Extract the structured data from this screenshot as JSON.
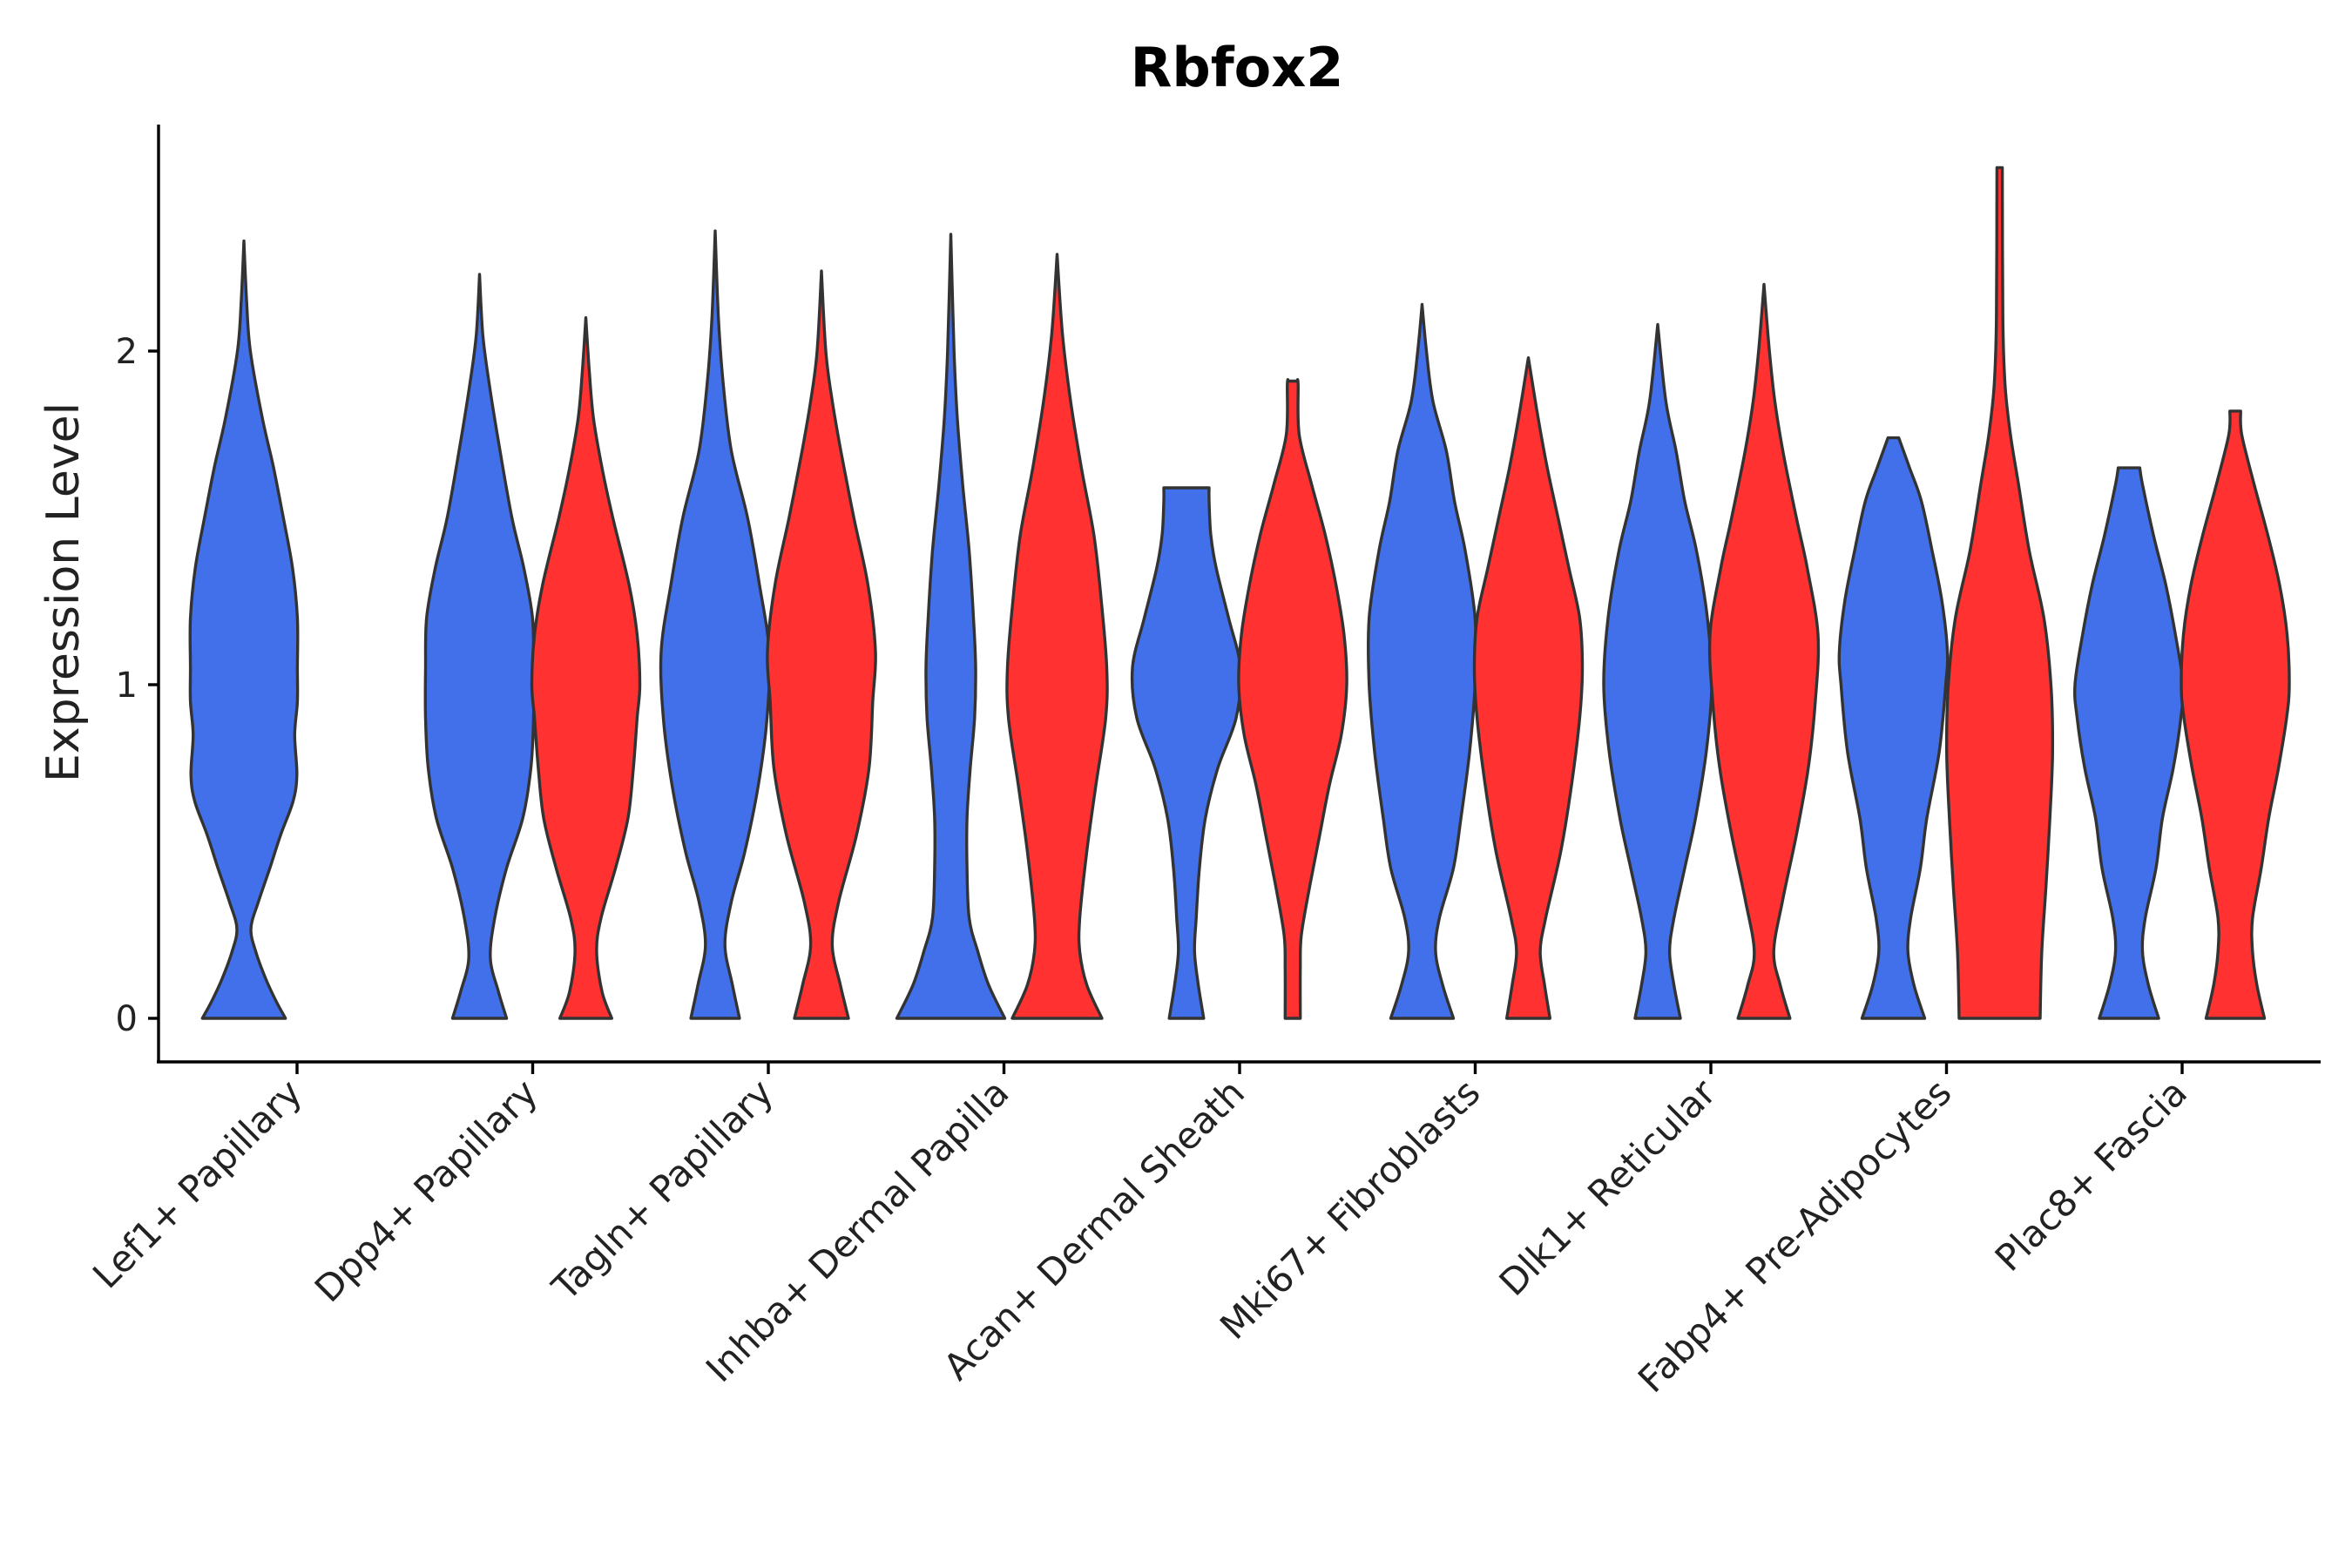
{
  "chart_data": {
    "type": "violin",
    "title": "Rbfox2",
    "xlabel": "",
    "ylabel": "Expression Level",
    "ylim": [
      -0.13,
      2.7
    ],
    "yticks": [
      0,
      1,
      2
    ],
    "categories": [
      "Lef1+ Papillary",
      "Dpp4+ Papillary",
      "Tagln+ Papillary",
      "Inhba+ Dermal Papilla",
      "Acan+ Dermal Sheath",
      "Mki67+ Fibroblasts",
      "Dlk1+ Reticular",
      "Fabp4+ Pre-Adipocytes",
      "Plac8+ Fascia"
    ],
    "groups": [
      {
        "name": "group-1",
        "color": "#4270EA"
      },
      {
        "name": "group-2",
        "color": "#FF3131"
      }
    ],
    "series": [
      {
        "category": "Lef1+ Papillary",
        "group": "group-1",
        "max": 2.33,
        "profile": [
          [
            0,
            0.77
          ],
          [
            0.05,
            0.6
          ],
          [
            0.12,
            0.4
          ],
          [
            0.2,
            0.22
          ],
          [
            0.27,
            0.13
          ],
          [
            0.35,
            0.27
          ],
          [
            0.45,
            0.48
          ],
          [
            0.55,
            0.68
          ],
          [
            0.65,
            0.91
          ],
          [
            0.73,
            0.98
          ],
          [
            0.85,
            0.94
          ],
          [
            0.95,
            0.99
          ],
          [
            1.05,
            0.99
          ],
          [
            1.2,
            0.99
          ],
          [
            1.35,
            0.9
          ],
          [
            1.5,
            0.73
          ],
          [
            1.65,
            0.55
          ],
          [
            1.8,
            0.34
          ],
          [
            2.0,
            0.12
          ],
          [
            2.15,
            0.05
          ],
          [
            2.33,
            0
          ]
        ]
      },
      {
        "category": "Dpp4+ Papillary",
        "group": "group-1",
        "max": 2.23,
        "profile": [
          [
            0,
            0.5
          ],
          [
            0.08,
            0.35
          ],
          [
            0.18,
            0.2
          ],
          [
            0.3,
            0.28
          ],
          [
            0.45,
            0.5
          ],
          [
            0.6,
            0.8
          ],
          [
            0.75,
            0.95
          ],
          [
            0.9,
            1.0
          ],
          [
            1.05,
            1.0
          ],
          [
            1.2,
            0.98
          ],
          [
            1.35,
            0.82
          ],
          [
            1.5,
            0.6
          ],
          [
            1.7,
            0.38
          ],
          [
            1.9,
            0.18
          ],
          [
            2.05,
            0.06
          ],
          [
            2.23,
            0
          ]
        ]
      },
      {
        "category": "Dpp4+ Papillary",
        "group": "group-2",
        "max": 2.1,
        "profile": [
          [
            0,
            0.48
          ],
          [
            0.08,
            0.3
          ],
          [
            0.2,
            0.2
          ],
          [
            0.3,
            0.28
          ],
          [
            0.45,
            0.55
          ],
          [
            0.6,
            0.78
          ],
          [
            0.75,
            0.88
          ],
          [
            0.9,
            0.95
          ],
          [
            1.0,
            1.0
          ],
          [
            1.15,
            0.95
          ],
          [
            1.3,
            0.8
          ],
          [
            1.5,
            0.5
          ],
          [
            1.65,
            0.3
          ],
          [
            1.8,
            0.14
          ],
          [
            1.95,
            0.06
          ],
          [
            2.1,
            0
          ]
        ]
      },
      {
        "category": "Tagln+ Papillary",
        "group": "group-1",
        "max": 2.36,
        "profile": [
          [
            0,
            0.45
          ],
          [
            0.1,
            0.32
          ],
          [
            0.22,
            0.18
          ],
          [
            0.35,
            0.3
          ],
          [
            0.5,
            0.55
          ],
          [
            0.7,
            0.8
          ],
          [
            0.9,
            0.96
          ],
          [
            1.1,
            1.0
          ],
          [
            1.3,
            0.82
          ],
          [
            1.5,
            0.6
          ],
          [
            1.7,
            0.3
          ],
          [
            1.9,
            0.15
          ],
          [
            2.1,
            0.06
          ],
          [
            2.36,
            0
          ]
        ]
      },
      {
        "category": "Tagln+ Papillary",
        "group": "group-2",
        "max": 2.24,
        "profile": [
          [
            0,
            0.5
          ],
          [
            0.1,
            0.35
          ],
          [
            0.22,
            0.2
          ],
          [
            0.35,
            0.32
          ],
          [
            0.55,
            0.65
          ],
          [
            0.75,
            0.88
          ],
          [
            0.95,
            0.95
          ],
          [
            1.1,
            1.0
          ],
          [
            1.3,
            0.86
          ],
          [
            1.5,
            0.6
          ],
          [
            1.7,
            0.36
          ],
          [
            1.85,
            0.2
          ],
          [
            2.0,
            0.08
          ],
          [
            2.24,
            0
          ]
        ]
      },
      {
        "category": "Inhba+ Dermal Papilla",
        "group": "group-1",
        "max": 2.35,
        "profile": [
          [
            0,
            1.0
          ],
          [
            0.1,
            0.7
          ],
          [
            0.2,
            0.5
          ],
          [
            0.3,
            0.34
          ],
          [
            0.45,
            0.3
          ],
          [
            0.6,
            0.3
          ],
          [
            0.75,
            0.36
          ],
          [
            0.9,
            0.44
          ],
          [
            1.05,
            0.46
          ],
          [
            1.2,
            0.42
          ],
          [
            1.4,
            0.34
          ],
          [
            1.6,
            0.22
          ],
          [
            1.8,
            0.12
          ],
          [
            2.0,
            0.06
          ],
          [
            2.35,
            0
          ]
        ]
      },
      {
        "category": "Inhba+ Dermal Papilla",
        "group": "group-2",
        "max": 2.29,
        "profile": [
          [
            0,
            0.83
          ],
          [
            0.1,
            0.55
          ],
          [
            0.2,
            0.42
          ],
          [
            0.3,
            0.42
          ],
          [
            0.5,
            0.55
          ],
          [
            0.7,
            0.72
          ],
          [
            0.9,
            0.9
          ],
          [
            1.05,
            0.92
          ],
          [
            1.25,
            0.82
          ],
          [
            1.45,
            0.68
          ],
          [
            1.65,
            0.45
          ],
          [
            1.85,
            0.25
          ],
          [
            2.05,
            0.1
          ],
          [
            2.29,
            0
          ]
        ]
      },
      {
        "category": "Acan+ Dermal Sheath",
        "group": "group-1",
        "max": 1.59,
        "profile": [
          [
            0,
            0.32
          ],
          [
            0.1,
            0.22
          ],
          [
            0.2,
            0.15
          ],
          [
            0.3,
            0.18
          ],
          [
            0.45,
            0.24
          ],
          [
            0.6,
            0.35
          ],
          [
            0.75,
            0.58
          ],
          [
            0.9,
            0.92
          ],
          [
            1.05,
            1.0
          ],
          [
            1.2,
            0.78
          ],
          [
            1.35,
            0.55
          ],
          [
            1.45,
            0.45
          ],
          [
            1.55,
            0.42
          ],
          [
            1.59,
            0.42
          ]
        ]
      },
      {
        "category": "Acan+ Dermal Sheath",
        "group": "group-2",
        "max": 1.91,
        "profile": [
          [
            0,
            0.14
          ],
          [
            0.15,
            0.14
          ],
          [
            0.25,
            0.16
          ],
          [
            0.4,
            0.32
          ],
          [
            0.55,
            0.5
          ],
          [
            0.7,
            0.68
          ],
          [
            0.85,
            0.9
          ],
          [
            1.0,
            1.0
          ],
          [
            1.15,
            0.95
          ],
          [
            1.3,
            0.8
          ],
          [
            1.45,
            0.6
          ],
          [
            1.6,
            0.35
          ],
          [
            1.75,
            0.12
          ],
          [
            1.9,
            0.1
          ],
          [
            1.91,
            0.08
          ]
        ]
      },
      {
        "category": "Mki67+ Fibroblasts",
        "group": "group-1",
        "max": 2.14,
        "profile": [
          [
            0,
            0.58
          ],
          [
            0.1,
            0.38
          ],
          [
            0.2,
            0.25
          ],
          [
            0.3,
            0.32
          ],
          [
            0.45,
            0.58
          ],
          [
            0.6,
            0.72
          ],
          [
            0.8,
            0.88
          ],
          [
            1.0,
            0.98
          ],
          [
            1.2,
            0.98
          ],
          [
            1.4,
            0.8
          ],
          [
            1.55,
            0.6
          ],
          [
            1.7,
            0.45
          ],
          [
            1.85,
            0.2
          ],
          [
            2.0,
            0.08
          ],
          [
            2.14,
            0
          ]
        ]
      },
      {
        "category": "Mki67+ Fibroblasts",
        "group": "group-2",
        "max": 1.98,
        "profile": [
          [
            0,
            0.4
          ],
          [
            0.1,
            0.3
          ],
          [
            0.2,
            0.22
          ],
          [
            0.3,
            0.32
          ],
          [
            0.5,
            0.6
          ],
          [
            0.7,
            0.8
          ],
          [
            0.9,
            0.95
          ],
          [
            1.05,
            1.0
          ],
          [
            1.2,
            0.95
          ],
          [
            1.35,
            0.75
          ],
          [
            1.5,
            0.55
          ],
          [
            1.65,
            0.35
          ],
          [
            1.8,
            0.18
          ],
          [
            1.98,
            0
          ]
        ]
      },
      {
        "category": "Dlk1+ Reticular",
        "group": "group-1",
        "max": 2.08,
        "profile": [
          [
            0,
            0.42
          ],
          [
            0.1,
            0.3
          ],
          [
            0.2,
            0.22
          ],
          [
            0.3,
            0.3
          ],
          [
            0.45,
            0.5
          ],
          [
            0.6,
            0.7
          ],
          [
            0.8,
            0.9
          ],
          [
            1.0,
            1.0
          ],
          [
            1.2,
            0.92
          ],
          [
            1.4,
            0.72
          ],
          [
            1.55,
            0.5
          ],
          [
            1.7,
            0.34
          ],
          [
            1.85,
            0.15
          ],
          [
            2.08,
            0
          ]
        ]
      },
      {
        "category": "Dlk1+ Reticular",
        "group": "group-2",
        "max": 2.2,
        "profile": [
          [
            0,
            0.48
          ],
          [
            0.1,
            0.3
          ],
          [
            0.2,
            0.18
          ],
          [
            0.35,
            0.34
          ],
          [
            0.55,
            0.6
          ],
          [
            0.75,
            0.82
          ],
          [
            0.95,
            0.95
          ],
          [
            1.15,
            1.0
          ],
          [
            1.35,
            0.8
          ],
          [
            1.5,
            0.6
          ],
          [
            1.7,
            0.35
          ],
          [
            1.85,
            0.2
          ],
          [
            2.0,
            0.1
          ],
          [
            2.2,
            0
          ]
        ]
      },
      {
        "category": "Fabp4+ Pre-Adipocytes",
        "group": "group-1",
        "max": 1.74,
        "profile": [
          [
            0,
            0.58
          ],
          [
            0.1,
            0.38
          ],
          [
            0.2,
            0.27
          ],
          [
            0.3,
            0.32
          ],
          [
            0.45,
            0.5
          ],
          [
            0.6,
            0.62
          ],
          [
            0.8,
            0.85
          ],
          [
            1.0,
            0.97
          ],
          [
            1.1,
            1.0
          ],
          [
            1.25,
            0.9
          ],
          [
            1.4,
            0.72
          ],
          [
            1.55,
            0.52
          ],
          [
            1.65,
            0.3
          ],
          [
            1.74,
            0.1
          ]
        ]
      },
      {
        "category": "Fabp4+ Pre-Adipocytes",
        "group": "group-2",
        "max": 2.55,
        "profile": [
          [
            0,
            0.75
          ],
          [
            0.2,
            0.78
          ],
          [
            0.4,
            0.86
          ],
          [
            0.6,
            0.93
          ],
          [
            0.8,
            0.98
          ],
          [
            1.0,
            0.95
          ],
          [
            1.2,
            0.82
          ],
          [
            1.4,
            0.55
          ],
          [
            1.6,
            0.35
          ],
          [
            1.75,
            0.2
          ],
          [
            1.9,
            0.1
          ],
          [
            2.1,
            0.06
          ],
          [
            2.55,
            0.05
          ]
        ]
      },
      {
        "category": "Plac8+ Fascia",
        "group": "group-1",
        "max": 1.65,
        "profile": [
          [
            0,
            0.55
          ],
          [
            0.1,
            0.36
          ],
          [
            0.2,
            0.25
          ],
          [
            0.3,
            0.3
          ],
          [
            0.45,
            0.5
          ],
          [
            0.6,
            0.62
          ],
          [
            0.75,
            0.82
          ],
          [
            0.9,
            0.96
          ],
          [
            1.0,
            1.0
          ],
          [
            1.15,
            0.86
          ],
          [
            1.3,
            0.68
          ],
          [
            1.45,
            0.45
          ],
          [
            1.6,
            0.25
          ],
          [
            1.65,
            0.2
          ]
        ]
      },
      {
        "category": "Plac8+ Fascia",
        "group": "group-2",
        "max": 1.82,
        "profile": [
          [
            0,
            0.54
          ],
          [
            0.1,
            0.4
          ],
          [
            0.2,
            0.32
          ],
          [
            0.3,
            0.32
          ],
          [
            0.45,
            0.48
          ],
          [
            0.6,
            0.62
          ],
          [
            0.75,
            0.8
          ],
          [
            0.9,
            0.95
          ],
          [
            1.0,
            1.0
          ],
          [
            1.15,
            0.96
          ],
          [
            1.3,
            0.82
          ],
          [
            1.45,
            0.6
          ],
          [
            1.6,
            0.35
          ],
          [
            1.75,
            0.12
          ],
          [
            1.82,
            0.1
          ]
        ]
      }
    ]
  }
}
